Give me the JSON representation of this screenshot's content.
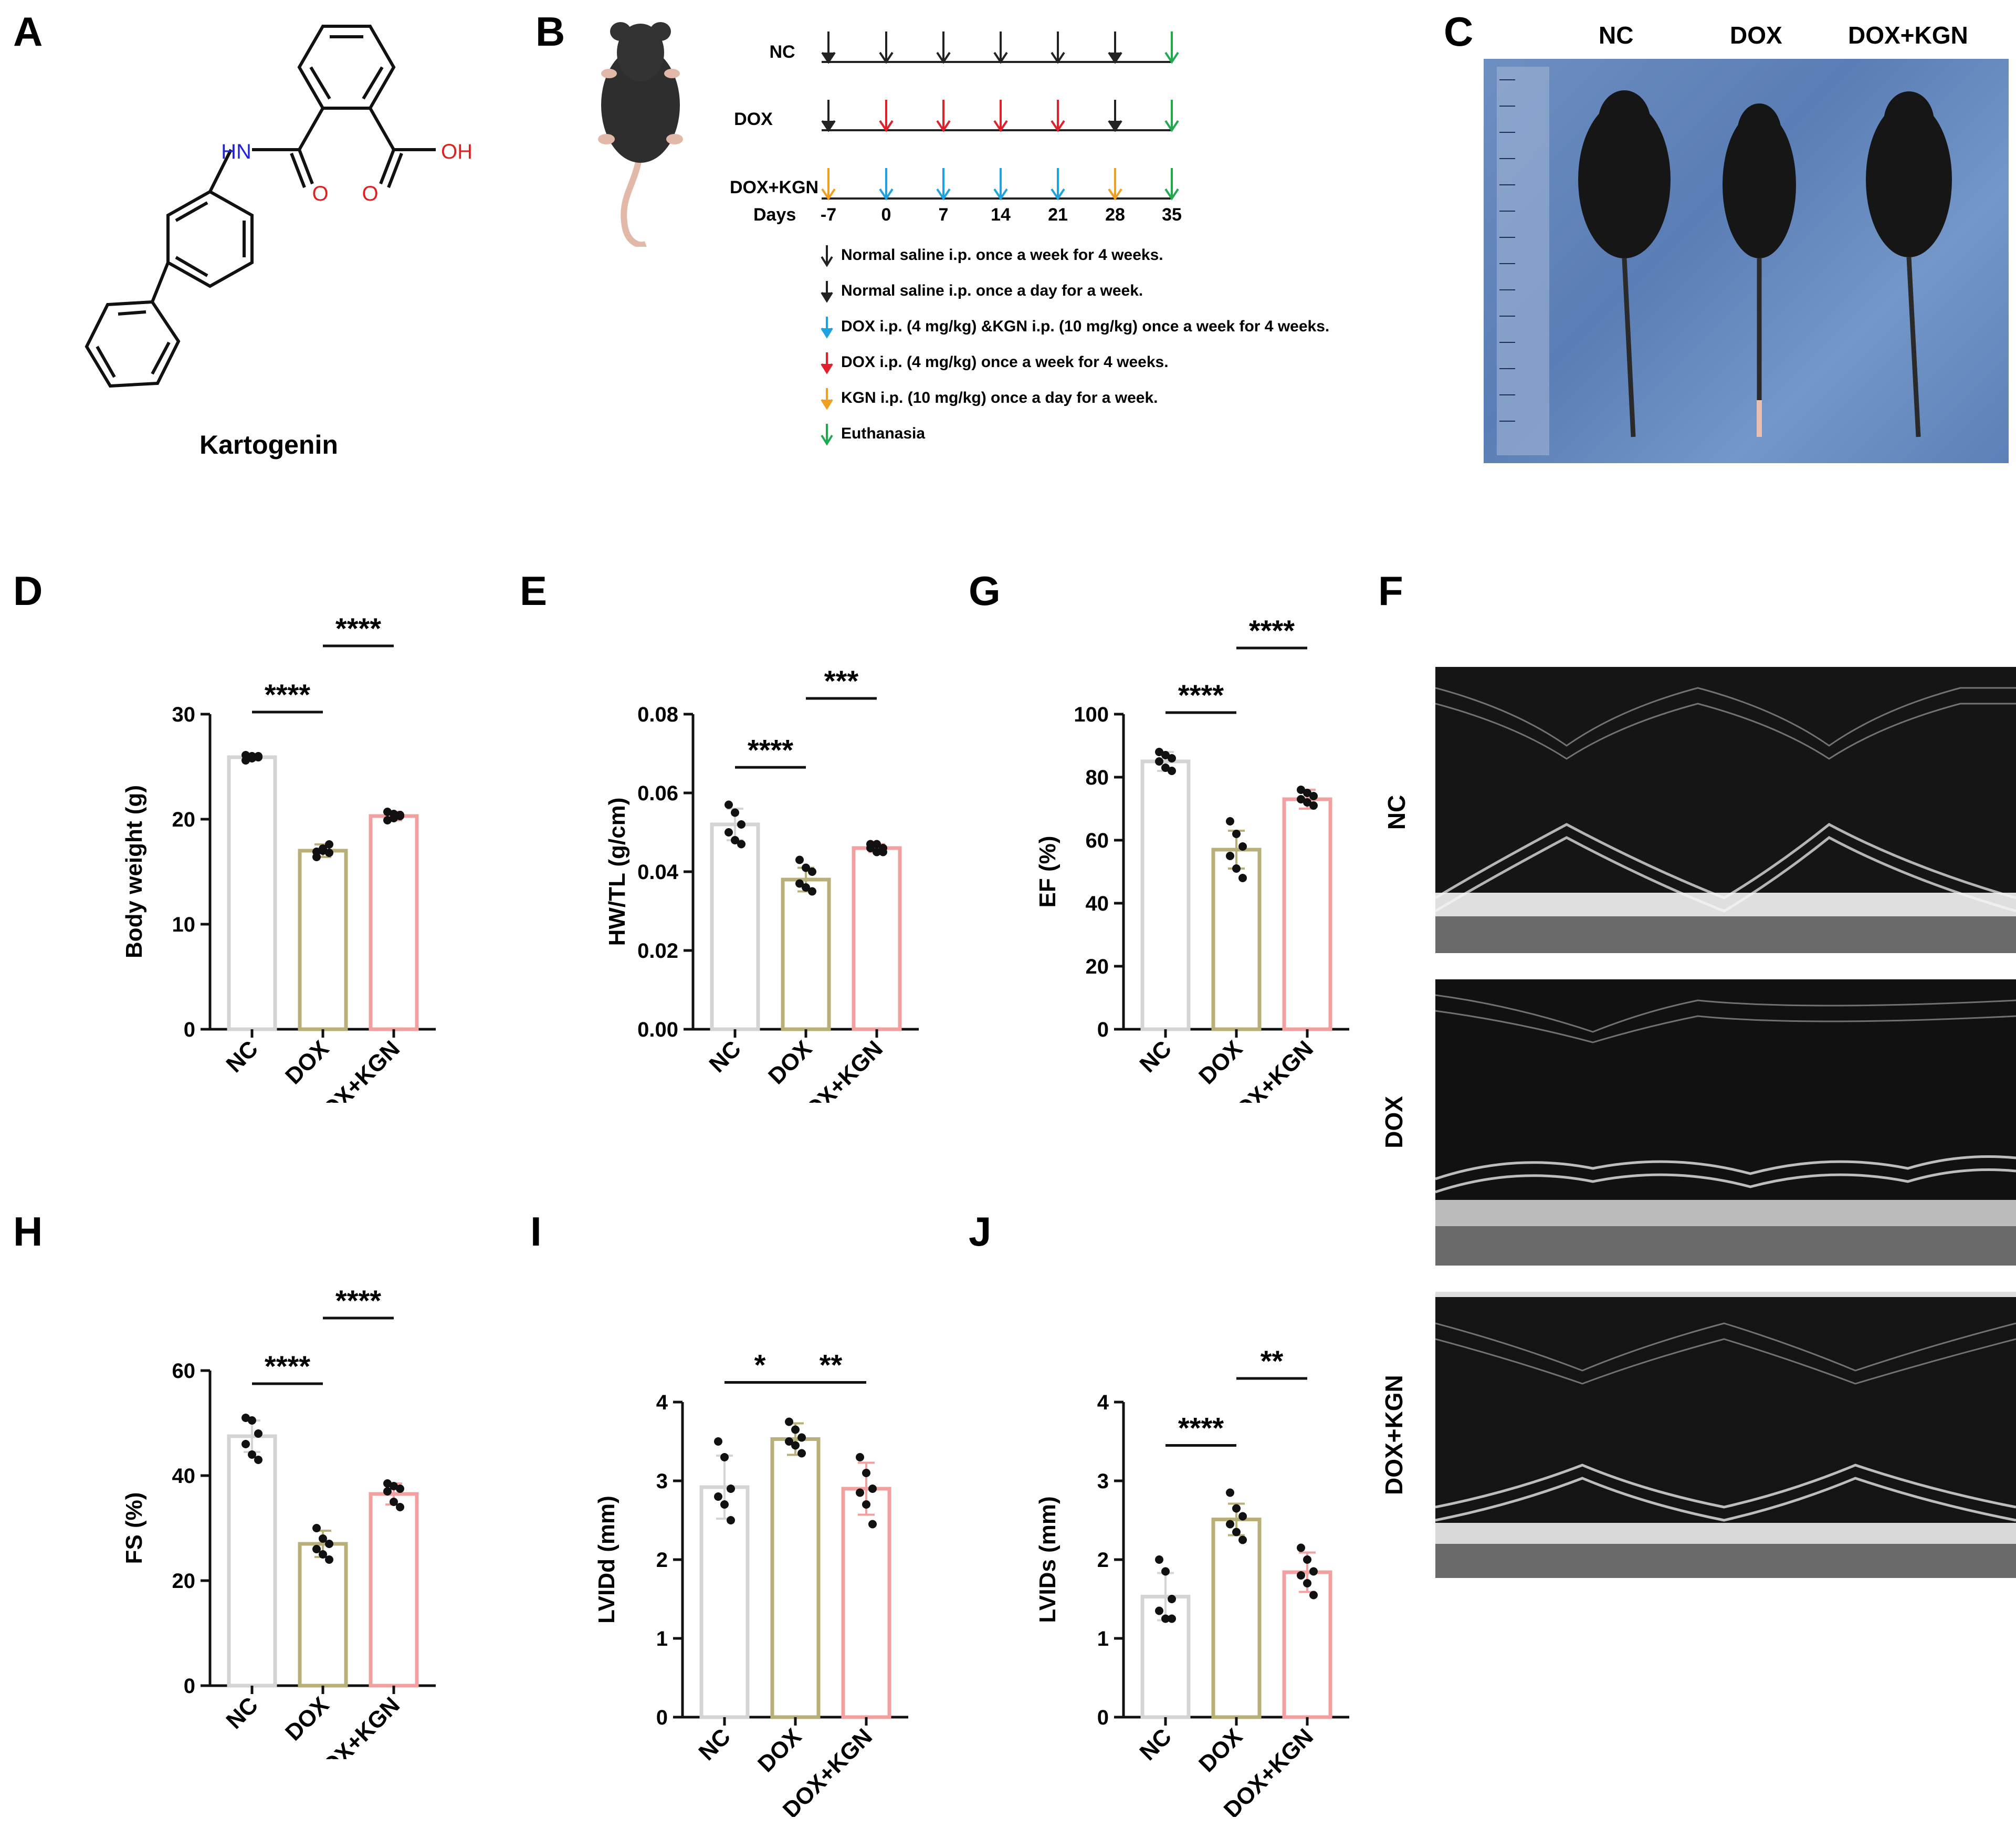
{
  "panels": {
    "A": "A",
    "B": "B",
    "C": "C",
    "D": "D",
    "E": "E",
    "G": "G",
    "F": "F",
    "H": "H",
    "I": "I",
    "J": "J"
  },
  "panelA": {
    "compound_name": "Kartogenin",
    "atom_nh": "HN",
    "atom_o1": "O",
    "atom_o2": "O",
    "atom_oh": "OH"
  },
  "panelB": {
    "groups": [
      "NC",
      "DOX",
      "DOX+KGN"
    ],
    "days_label": "Days",
    "days": [
      "-7",
      "0",
      "7",
      "14",
      "21",
      "28",
      "35"
    ],
    "legend": [
      {
        "color": "#222222",
        "text": "Normal saline i.p. once a week for 4 weeks."
      },
      {
        "color": "#222222",
        "text": "Normal saline i.p. once a day for a week."
      },
      {
        "color": "#1fa3e0",
        "text": "DOX i.p. (4 mg/kg) &KGN i.p. (10 mg/kg) once a week for 4 weeks."
      },
      {
        "color": "#e0202a",
        "text": "DOX i.p. (4 mg/kg) once a week for 4 weeks."
      },
      {
        "color": "#f0a020",
        "text": "KGN i.p. (10 mg/kg) once a day for a week."
      },
      {
        "color": "#1faa50",
        "text": "Euthanasia"
      }
    ]
  },
  "panelC": {
    "labels": [
      "NC",
      "DOX",
      "DOX+KGN"
    ]
  },
  "panelF": {
    "labels": [
      "NC",
      "DOX",
      "DOX+KGN"
    ]
  },
  "colors": {
    "NC": "#d4d4d4",
    "DOX": "#b9b079",
    "DOX+KGN": "#f2a0a0"
  },
  "chart_data": [
    {
      "panel": "D",
      "type": "bar",
      "categories": [
        "NC",
        "DOX",
        "DOX+KGN"
      ],
      "values": [
        25.9,
        17.0,
        20.3
      ],
      "sd": [
        0.3,
        0.6,
        0.4
      ],
      "points": [
        [
          25.6,
          26.0,
          25.9,
          26.1,
          25.8,
          26.0
        ],
        [
          16.4,
          17.2,
          17.6,
          16.9,
          17.0,
          16.8
        ],
        [
          19.9,
          20.5,
          20.3,
          20.7,
          20.1,
          20.4
        ]
      ],
      "ylabel": "Body weight (g)",
      "ylim": [
        0,
        30
      ],
      "yticks": [
        "0",
        "10",
        "20",
        "30"
      ],
      "sig": [
        {
          "from": 0,
          "to": 1,
          "label": "****",
          "y": 30.2
        },
        {
          "from": 1,
          "to": 2,
          "label": "****",
          "y": 36.5
        }
      ]
    },
    {
      "panel": "E",
      "type": "bar",
      "categories": [
        "NC",
        "DOX",
        "DOX+KGN"
      ],
      "values": [
        0.052,
        0.038,
        0.046
      ],
      "sd": [
        0.004,
        0.003,
        0.001
      ],
      "points": [
        [
          0.057,
          0.055,
          0.052,
          0.05,
          0.048,
          0.047
        ],
        [
          0.043,
          0.041,
          0.04,
          0.037,
          0.036,
          0.035
        ],
        [
          0.047,
          0.047,
          0.046,
          0.046,
          0.045,
          0.045
        ]
      ],
      "ylabel": "HW/TL (g/cm)",
      "ylim": [
        0,
        0.08
      ],
      "yticks": [
        "0.00",
        "0.02",
        "0.04",
        "0.06",
        "0.08"
      ],
      "sig": [
        {
          "from": 0,
          "to": 1,
          "label": "****",
          "y": 0.0665
        },
        {
          "from": 1,
          "to": 2,
          "label": "***",
          "y": 0.084
        }
      ]
    },
    {
      "panel": "G",
      "type": "bar",
      "categories": [
        "NC",
        "DOX",
        "DOX+KGN"
      ],
      "values": [
        85,
        57,
        73
      ],
      "sd": [
        3,
        6,
        3
      ],
      "points": [
        [
          88,
          87,
          86,
          85,
          83,
          82
        ],
        [
          66,
          62,
          58,
          55,
          51,
          48
        ],
        [
          76,
          75,
          74,
          73,
          72,
          71
        ]
      ],
      "ylabel": "EF (%)",
      "ylim": [
        0,
        100
      ],
      "yticks": [
        "0",
        "20",
        "40",
        "60",
        "80",
        "100"
      ],
      "sig": [
        {
          "from": 0,
          "to": 1,
          "label": "****",
          "y": 100.5
        },
        {
          "from": 1,
          "to": 2,
          "label": "****",
          "y": 121
        }
      ]
    },
    {
      "panel": "H",
      "type": "bar",
      "categories": [
        "NC",
        "DOX",
        "DOX+KGN"
      ],
      "values": [
        47.5,
        27,
        36.5
      ],
      "sd": [
        3,
        2.5,
        2
      ],
      "points": [
        [
          51,
          50.5,
          48,
          46,
          44,
          43
        ],
        [
          30,
          28,
          27,
          26,
          25,
          24
        ],
        [
          38.5,
          38,
          37.5,
          37,
          35,
          34
        ]
      ],
      "ylabel": "FS (%)",
      "ylim": [
        0,
        60
      ],
      "yticks": [
        "0",
        "20",
        "40",
        "60"
      ],
      "sig": [
        {
          "from": 0,
          "to": 1,
          "label": "****",
          "y": 57.5
        },
        {
          "from": 1,
          "to": 2,
          "label": "****",
          "y": 70
        }
      ]
    },
    {
      "panel": "I",
      "type": "bar",
      "categories": [
        "NC",
        "DOX",
        "DOX+KGN"
      ],
      "values": [
        2.92,
        3.53,
        2.9
      ],
      "sd": [
        0.4,
        0.2,
        0.33
      ],
      "points": [
        [
          3.5,
          3.3,
          2.9,
          2.8,
          2.7,
          2.5
        ],
        [
          3.75,
          3.65,
          3.55,
          3.5,
          3.45,
          3.35
        ],
        [
          3.3,
          3.1,
          2.9,
          2.85,
          2.7,
          2.45
        ]
      ],
      "ylabel": "LVIDd (mm)",
      "ylim": [
        0,
        4
      ],
      "yticks": [
        "0",
        "1",
        "2",
        "3",
        "4"
      ],
      "sig": [
        {
          "from": 0,
          "to": 1,
          "label": "*",
          "y": 4.25
        },
        {
          "from": 1,
          "to": 2,
          "label": "**",
          "y": 4.25
        }
      ]
    },
    {
      "panel": "J",
      "type": "bar",
      "categories": [
        "NC",
        "DOX",
        "DOX+KGN"
      ],
      "values": [
        1.53,
        2.51,
        1.84
      ],
      "sd": [
        0.3,
        0.2,
        0.25
      ],
      "points": [
        [
          2.0,
          1.85,
          1.5,
          1.35,
          1.25,
          1.25
        ],
        [
          2.85,
          2.65,
          2.55,
          2.45,
          2.35,
          2.25
        ],
        [
          2.15,
          2.0,
          1.85,
          1.8,
          1.7,
          1.55
        ]
      ],
      "ylabel": "LVIDs (mm)",
      "ylim": [
        0,
        4
      ],
      "yticks": [
        "0",
        "1",
        "2",
        "3",
        "4"
      ],
      "sig": [
        {
          "from": 0,
          "to": 1,
          "label": "****",
          "y": 3.45
        },
        {
          "from": 1,
          "to": 2,
          "label": "**",
          "y": 4.3
        }
      ]
    }
  ]
}
